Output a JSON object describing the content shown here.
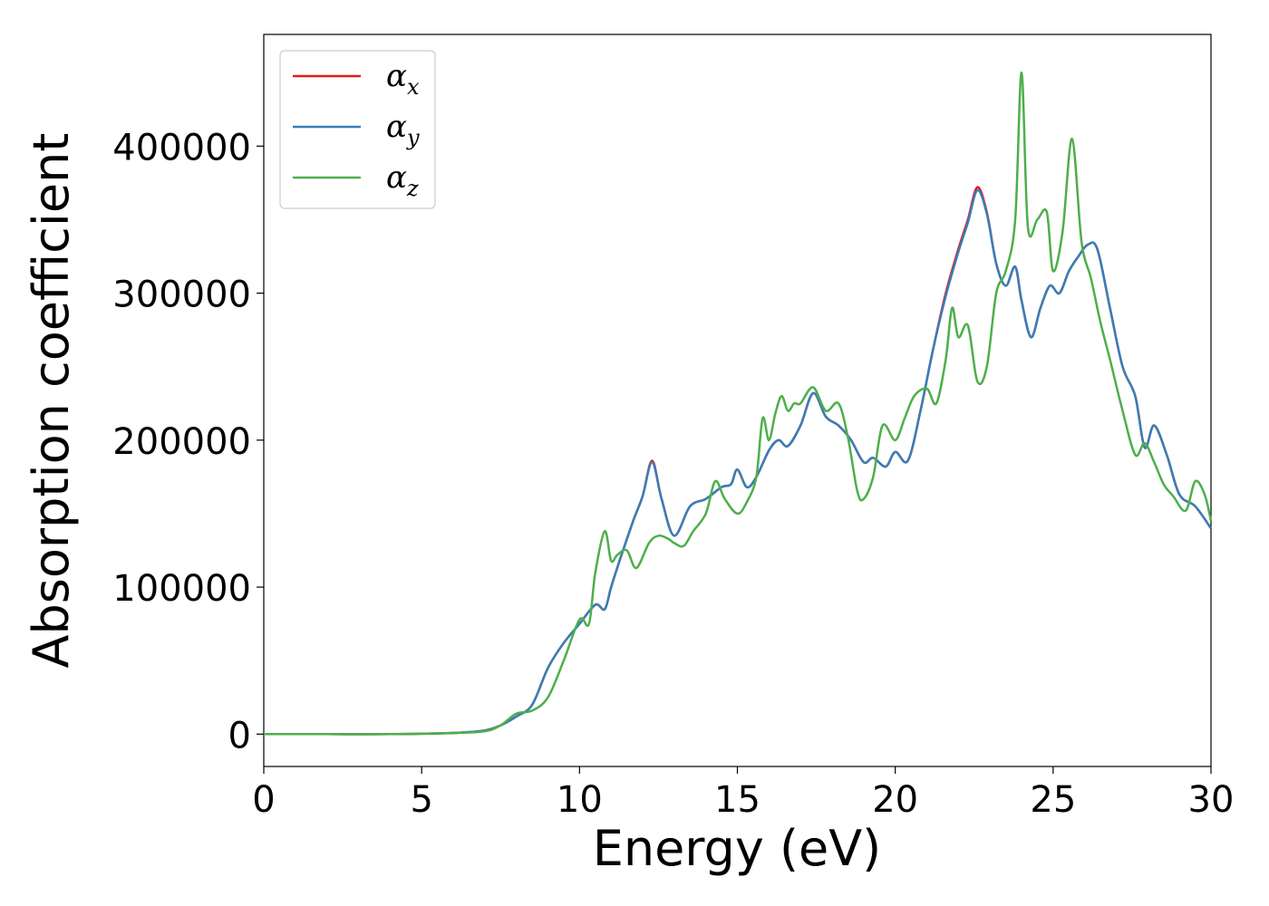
{
  "chart_data": {
    "type": "line",
    "title": "",
    "xlabel": "Energy (eV)",
    "ylabel": "Absorption coefficient",
    "xlim": [
      0,
      30
    ],
    "ylim": [
      -22000,
      476000
    ],
    "xticks": [
      0,
      5,
      10,
      15,
      20,
      25,
      30
    ],
    "yticks": [
      0,
      100000,
      200000,
      300000,
      400000
    ],
    "grid": false,
    "legend_position": "top-left",
    "series": [
      {
        "name": "α_x",
        "legend_main": "α",
        "legend_sub": "x",
        "color": "#e41a1c",
        "x": [
          0,
          2,
          4,
          6,
          7,
          7.5,
          8,
          8.5,
          9,
          9.5,
          10,
          10.5,
          10.8,
          11,
          11.3,
          11.7,
          12,
          12.3,
          12.6,
          13,
          13.5,
          14,
          14.5,
          14.8,
          15,
          15.3,
          15.6,
          16,
          16.3,
          16.6,
          17,
          17.4,
          17.8,
          18.2,
          18.6,
          19,
          19.3,
          19.7,
          20,
          20.4,
          20.8,
          21.2,
          21.6,
          22,
          22.3,
          22.6,
          22.9,
          23.2,
          23.5,
          23.8,
          24,
          24.3,
          24.6,
          24.9,
          25.2,
          25.5,
          25.8,
          26.1,
          26.4,
          26.8,
          27.2,
          27.6,
          27.9,
          28.2,
          28.6,
          29,
          29.5,
          30
        ],
        "y": [
          0,
          0,
          0,
          800,
          2500,
          6000,
          12000,
          20000,
          45000,
          62000,
          75000,
          88000,
          85000,
          100000,
          120000,
          145000,
          162000,
          186000,
          160000,
          135000,
          155000,
          160000,
          168000,
          170000,
          180000,
          168000,
          175000,
          193000,
          200000,
          196000,
          210000,
          232000,
          216000,
          210000,
          200000,
          185000,
          188000,
          182000,
          192000,
          186000,
          220000,
          262000,
          300000,
          330000,
          350000,
          372000,
          355000,
          320000,
          305000,
          318000,
          295000,
          270000,
          290000,
          305000,
          300000,
          315000,
          325000,
          333000,
          330000,
          290000,
          250000,
          230000,
          195000,
          210000,
          190000,
          163000,
          155000,
          140000
        ]
      },
      {
        "name": "α_y",
        "legend_main": "α",
        "legend_sub": "y",
        "color": "#377eb8",
        "x": [
          0,
          2,
          4,
          6,
          7,
          7.5,
          8,
          8.5,
          9,
          9.5,
          10,
          10.5,
          10.8,
          11,
          11.3,
          11.7,
          12,
          12.3,
          12.6,
          13,
          13.5,
          14,
          14.5,
          14.8,
          15,
          15.3,
          15.6,
          16,
          16.3,
          16.6,
          17,
          17.4,
          17.8,
          18.2,
          18.6,
          19,
          19.3,
          19.7,
          20,
          20.4,
          20.8,
          21.2,
          21.6,
          22,
          22.3,
          22.6,
          22.9,
          23.2,
          23.5,
          23.8,
          24,
          24.3,
          24.6,
          24.9,
          25.2,
          25.5,
          25.8,
          26.1,
          26.4,
          26.8,
          27.2,
          27.6,
          27.9,
          28.2,
          28.6,
          29,
          29.5,
          30
        ],
        "y": [
          0,
          0,
          0,
          800,
          2500,
          6000,
          12000,
          20000,
          45000,
          62000,
          75000,
          88000,
          85000,
          100000,
          120000,
          145000,
          162000,
          185000,
          160000,
          135000,
          155000,
          160000,
          168000,
          170000,
          180000,
          168000,
          175000,
          193000,
          200000,
          196000,
          210000,
          232000,
          216000,
          210000,
          200000,
          185000,
          188000,
          182000,
          192000,
          186000,
          220000,
          262000,
          298000,
          328000,
          348000,
          370000,
          354000,
          320000,
          305000,
          318000,
          295000,
          270000,
          290000,
          305000,
          300000,
          315000,
          325000,
          333000,
          330000,
          290000,
          250000,
          230000,
          195000,
          210000,
          190000,
          163000,
          155000,
          140000
        ]
      },
      {
        "name": "α_z",
        "legend_main": "α",
        "legend_sub": "z",
        "color": "#4daf4a",
        "x": [
          0,
          2,
          4,
          6,
          7,
          7.5,
          8,
          8.5,
          9,
          9.5,
          10,
          10.3,
          10.5,
          10.8,
          11,
          11.2,
          11.5,
          11.8,
          12.2,
          12.5,
          12.8,
          13,
          13.3,
          13.6,
          14,
          14.3,
          14.6,
          15,
          15.3,
          15.6,
          15.8,
          16,
          16.2,
          16.4,
          16.6,
          16.8,
          17,
          17.4,
          17.8,
          18.2,
          18.5,
          18.8,
          19,
          19.3,
          19.6,
          20,
          20.3,
          20.6,
          21,
          21.3,
          21.6,
          21.8,
          22,
          22.3,
          22.6,
          22.9,
          23.2,
          23.5,
          23.8,
          24,
          24.2,
          24.5,
          24.8,
          25,
          25.3,
          25.6,
          25.9,
          26.2,
          26.5,
          26.8,
          27.2,
          27.6,
          27.9,
          28.2,
          28.5,
          28.8,
          29.2,
          29.5,
          29.8,
          30
        ],
        "y": [
          0,
          0,
          0,
          800,
          2000,
          6000,
          14000,
          16000,
          25000,
          50000,
          78000,
          75000,
          110000,
          138000,
          118000,
          122000,
          125000,
          113000,
          130000,
          135000,
          133000,
          130000,
          128000,
          138000,
          150000,
          172000,
          160000,
          150000,
          158000,
          175000,
          215000,
          200000,
          218000,
          230000,
          220000,
          225000,
          225000,
          236000,
          220000,
          225000,
          202000,
          165000,
          160000,
          175000,
          210000,
          200000,
          215000,
          230000,
          235000,
          225000,
          255000,
          290000,
          270000,
          278000,
          240000,
          250000,
          300000,
          315000,
          350000,
          450000,
          345000,
          350000,
          355000,
          315000,
          342000,
          405000,
          335000,
          310000,
          280000,
          255000,
          220000,
          190000,
          198000,
          185000,
          170000,
          162000,
          152000,
          172000,
          163000,
          145000
        ]
      }
    ]
  }
}
